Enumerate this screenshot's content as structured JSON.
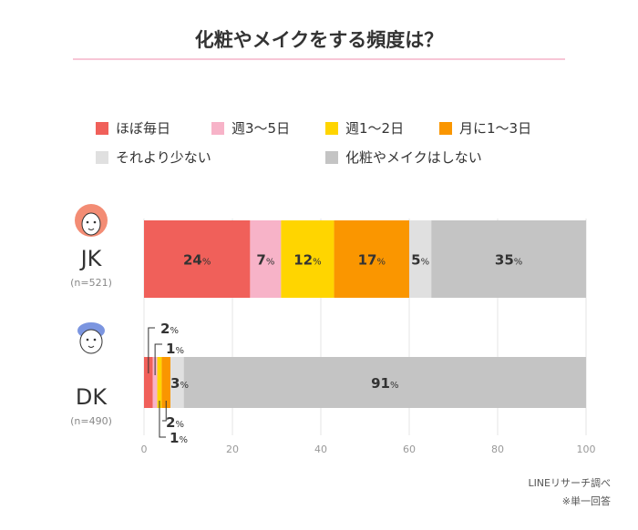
{
  "chart_data": {
    "type": "bar",
    "orientation": "horizontal-stacked",
    "title": "化粧やメイクをする頻度は？",
    "categories": [
      {
        "label": "JK",
        "n": "(n=521)",
        "icon": "girl-face-icon"
      },
      {
        "label": "DK",
        "n": "(n=490)",
        "icon": "boy-face-icon"
      }
    ],
    "series": [
      {
        "name": "ほぼ毎日",
        "color": "#f0605a",
        "values": [
          24,
          2
        ]
      },
      {
        "name": "週3〜5日",
        "color": "#f7b3c8",
        "values": [
          7,
          1
        ]
      },
      {
        "name": "週1〜2日",
        "color": "#ffd500",
        "values": [
          12,
          1
        ]
      },
      {
        "name": "月に1〜3日",
        "color": "#fa9600",
        "values": [
          17,
          2
        ]
      },
      {
        "name": "それより少ない",
        "color": "#e0e0e0",
        "values": [
          5,
          3
        ]
      },
      {
        "name": "化粧やメイクはしない",
        "color": "#c4c4c4",
        "values": [
          35,
          91
        ]
      }
    ],
    "value_suffix": "%",
    "xlim": [
      0,
      100
    ],
    "xticks": [
      0,
      20,
      40,
      60,
      80,
      100
    ],
    "grid": true,
    "legend_position": "top"
  },
  "notes": [
    "LINEリサーチ調べ",
    "※単一回答"
  ]
}
